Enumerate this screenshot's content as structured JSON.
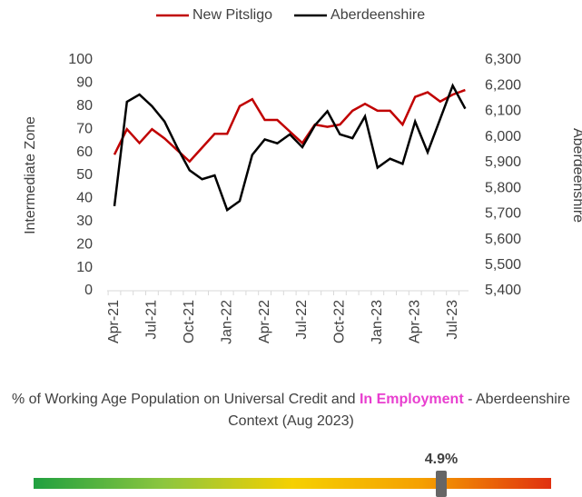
{
  "chart_data": {
    "type": "line",
    "categories": [
      "Apr-21",
      null,
      null,
      "Jul-21",
      null,
      null,
      "Oct-21",
      null,
      null,
      "Jan-22",
      null,
      null,
      "Apr-22",
      null,
      null,
      "Jul-22",
      null,
      null,
      "Oct-22",
      null,
      null,
      "Jan-23",
      null,
      null,
      "Apr-23",
      null,
      null,
      "Jul-23",
      null
    ],
    "series": [
      {
        "name": "New Pitsligo",
        "color": "#c00000",
        "values": [
          59,
          70,
          64,
          70,
          66,
          61,
          56,
          62,
          68,
          68,
          80,
          83,
          74,
          74,
          69,
          64,
          72,
          71,
          72,
          78,
          81,
          78,
          78,
          72,
          84,
          86,
          82,
          85,
          87
        ]
      },
      {
        "name": "Aberdeenshire",
        "color": "#000000",
        "axis": "y2",
        "values": [
          5730,
          6137,
          6165,
          6120,
          6060,
          5960,
          5870,
          5835,
          5850,
          5715,
          5750,
          5930,
          5990,
          5975,
          6010,
          5960,
          6045,
          6100,
          6010,
          5995,
          6080,
          5880,
          5915,
          5895,
          6060,
          5940,
          6070,
          6200,
          6110
        ]
      }
    ],
    "ylabel": "Intermediate Zone",
    "y2label": "Aberdeenshire",
    "ylim": [
      0,
      100
    ],
    "yticks": [
      0,
      10,
      20,
      30,
      40,
      50,
      60,
      70,
      80,
      90,
      100
    ],
    "y2lim": [
      5400,
      6300
    ],
    "y2ticks": [
      {
        "value": 5400,
        "label": "5,400"
      },
      {
        "value": 5500,
        "label": "5,500"
      },
      {
        "value": 5600,
        "label": "5,600"
      },
      {
        "value": 5700,
        "label": "5,700"
      },
      {
        "value": 5800,
        "label": "5,800"
      },
      {
        "value": 5900,
        "label": "5,900"
      },
      {
        "value": 6000,
        "label": "6,000"
      },
      {
        "value": 6100,
        "label": "6,100"
      },
      {
        "value": 6200,
        "label": "6,200"
      },
      {
        "value": 6300,
        "label": "6,300"
      }
    ],
    "legend": "top"
  },
  "context": {
    "title_start": "% of Working Age Population on Universal Credit and ",
    "title_highlight": "In Employment",
    "title_end": " - Aberdeenshire Context (Aug 2023)",
    "marker_label": "4.9%"
  }
}
